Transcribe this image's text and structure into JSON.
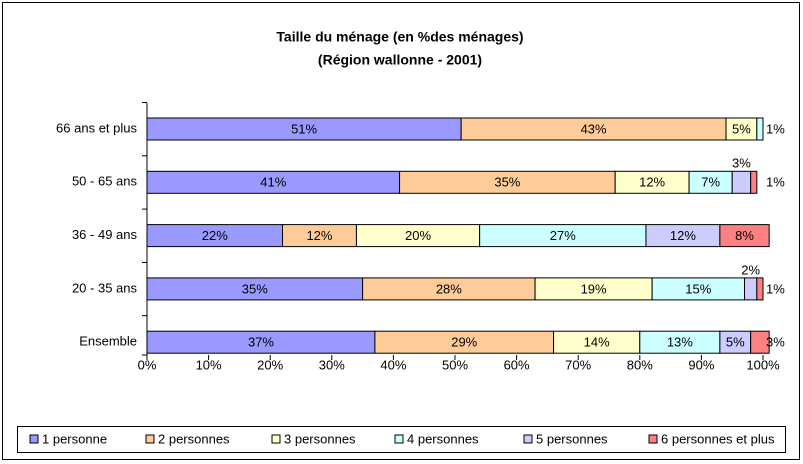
{
  "chart_data": {
    "type": "stacked_barh",
    "title": "Taille du ménage (en %des ménages)",
    "subtitle": "(Région wallonne - 2001)",
    "categories": [
      "66 ans et plus",
      "50 - 65 ans",
      "36 - 49 ans",
      "20 - 35 ans",
      "Ensemble"
    ],
    "series": [
      {
        "name": "1 personne",
        "color": "#9999ff",
        "values": [
          51,
          41,
          22,
          35,
          37
        ],
        "value_labels": [
          "51%",
          "41%",
          "22%",
          "35%",
          "37%"
        ]
      },
      {
        "name": "2 personnes",
        "color": "#ffcc99",
        "values": [
          43,
          35,
          12,
          28,
          29
        ],
        "value_labels": [
          "43%",
          "35%",
          "12%",
          "28%",
          "29%"
        ]
      },
      {
        "name": "3 personnes",
        "color": "#ffffcc",
        "values": [
          5,
          12,
          20,
          19,
          14
        ],
        "value_labels": [
          "5%",
          "12%",
          "20%",
          "19%",
          "14%"
        ]
      },
      {
        "name": "4 personnes",
        "color": "#ccffff",
        "values": [
          1,
          7,
          27,
          15,
          13
        ],
        "value_labels": [
          "1%",
          "7%",
          "27%",
          "15%",
          "13%"
        ]
      },
      {
        "name": "5 personnes",
        "color": "#ccccff",
        "values": [
          0,
          3,
          12,
          2,
          5
        ],
        "value_labels": [
          null,
          "3%",
          "12%",
          "2%",
          "5%"
        ]
      },
      {
        "name": "6 personnes et plus",
        "color": "#ff8080",
        "values": [
          0,
          1,
          8,
          1,
          3
        ],
        "value_labels": [
          null,
          "1%",
          "8%",
          "1%",
          "3%"
        ]
      }
    ],
    "xlim": [
      0,
      100
    ],
    "xticks": [
      {
        "value": 0,
        "label": "0%"
      },
      {
        "value": 10,
        "label": "10%"
      },
      {
        "value": 20,
        "label": "20%"
      },
      {
        "value": 30,
        "label": "30%"
      },
      {
        "value": 40,
        "label": "40%"
      },
      {
        "value": 50,
        "label": "50%"
      },
      {
        "value": 60,
        "label": "60%"
      },
      {
        "value": 70,
        "label": "70%"
      },
      {
        "value": 80,
        "label": "80%"
      },
      {
        "value": 90,
        "label": "90%"
      },
      {
        "value": 100,
        "label": "100%"
      }
    ],
    "legend": "bottom"
  }
}
